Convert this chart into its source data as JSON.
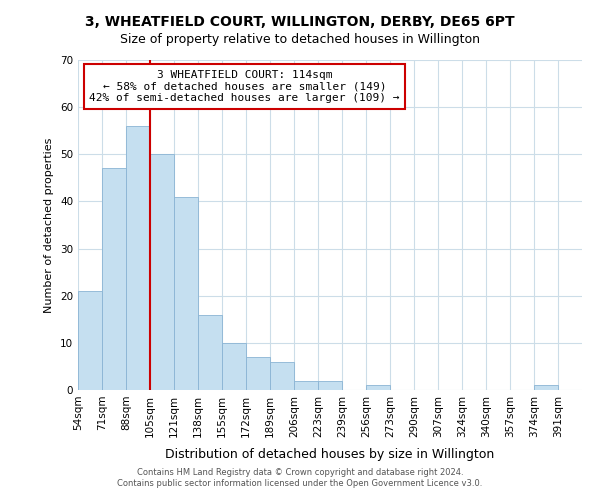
{
  "title": "3, WHEATFIELD COURT, WILLINGTON, DERBY, DE65 6PT",
  "subtitle": "Size of property relative to detached houses in Willington",
  "xlabel": "Distribution of detached houses by size in Willington",
  "ylabel": "Number of detached properties",
  "bar_labels": [
    "54sqm",
    "71sqm",
    "88sqm",
    "105sqm",
    "121sqm",
    "138sqm",
    "155sqm",
    "172sqm",
    "189sqm",
    "206sqm",
    "223sqm",
    "239sqm",
    "256sqm",
    "273sqm",
    "290sqm",
    "307sqm",
    "324sqm",
    "340sqm",
    "357sqm",
    "374sqm",
    "391sqm"
  ],
  "bar_values": [
    21,
    47,
    56,
    50,
    41,
    16,
    10,
    7,
    6,
    2,
    2,
    0,
    1,
    0,
    0,
    0,
    0,
    0,
    0,
    1,
    0
  ],
  "bar_color": "#c5dff0",
  "bar_edge_color": "#8ab4d4",
  "vline_color": "#cc0000",
  "vline_pos": 3,
  "ylim": [
    0,
    70
  ],
  "yticks": [
    0,
    10,
    20,
    30,
    40,
    50,
    60,
    70
  ],
  "annotation_title": "3 WHEATFIELD COURT: 114sqm",
  "annotation_line1": "← 58% of detached houses are smaller (149)",
  "annotation_line2": "42% of semi-detached houses are larger (109) →",
  "annotation_box_color": "#ffffff",
  "annotation_box_edge_color": "#cc0000",
  "footer1": "Contains HM Land Registry data © Crown copyright and database right 2024.",
  "footer2": "Contains public sector information licensed under the Open Government Licence v3.0.",
  "background_color": "#ffffff",
  "grid_color": "#ccdde8",
  "title_fontsize": 10,
  "subtitle_fontsize": 9,
  "xlabel_fontsize": 9,
  "ylabel_fontsize": 8,
  "tick_fontsize": 7.5,
  "annotation_fontsize": 8,
  "footer_fontsize": 6
}
